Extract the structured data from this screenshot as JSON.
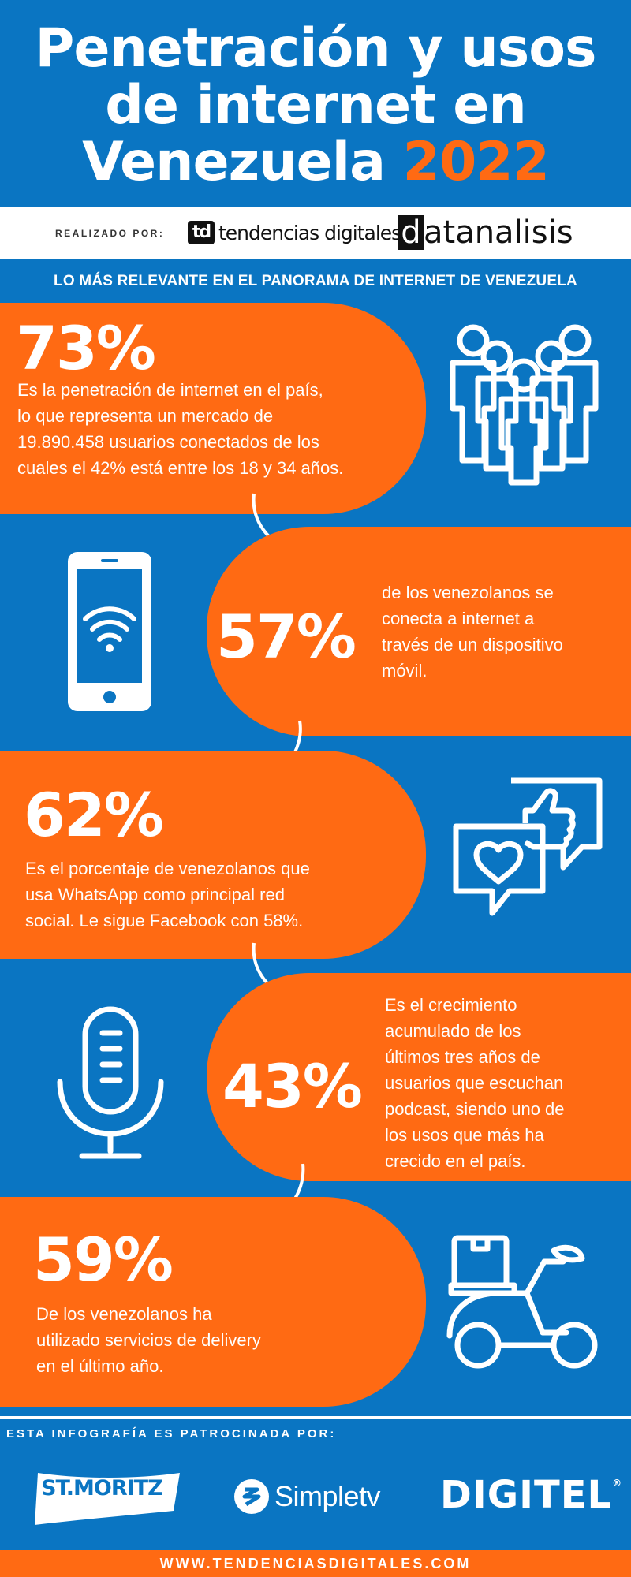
{
  "header": {
    "title_line1": "Penetración y usos",
    "title_line2": "de internet en",
    "title_line3_text": "Venezuela",
    "title_year": "2022"
  },
  "made_by": {
    "label": "REALIZADO POR:",
    "logo1_mark": "td",
    "logo1_text": "tendencias digitales",
    "logo2_mark": "d",
    "logo2_text": "atanalisis"
  },
  "subtitle": "LO MÁS RELEVANTE EN EL PANORAMA DE INTERNET DE VENEZUELA",
  "stats": [
    {
      "value": "73%",
      "text_lines": [
        "Es la penetración de internet en el país,",
        "lo que representa un mercado de",
        "19.890.458 usuarios conectados de los",
        "cuales el 42% está entre los 18 y 34 años."
      ],
      "icon": "people-group-icon"
    },
    {
      "value": "57%",
      "text_lines": [
        "de los venezolanos se",
        "conecta a internet a",
        "través de un dispositivo",
        "móvil."
      ],
      "icon": "smartphone-wifi-icon"
    },
    {
      "value": "62%",
      "text_lines": [
        "Es el porcentaje de venezolanos que",
        "usa WhatsApp como principal red",
        "social. Le sigue Facebook con 58%."
      ],
      "icon": "social-chat-like-icon"
    },
    {
      "value": "43%",
      "text_lines": [
        "Es el crecimiento",
        "acumulado de los",
        "últimos tres años de",
        "usuarios que escuchan",
        "podcast, siendo uno de",
        "los usos que más ha",
        "crecido en el país."
      ],
      "icon": "microphone-icon"
    },
    {
      "value": "59%",
      "text_lines": [
        "De los venezolanos ha",
        "utilizado servicios de delivery",
        "en el último año."
      ],
      "icon": "delivery-scooter-icon"
    }
  ],
  "sponsors": {
    "label": "ESTA INFOGRAFÍA ES PATROCINADA POR:",
    "stmoritz": "ST.MORITZ",
    "simpletv": "Simpletv",
    "digitel": "DIGITEL"
  },
  "footer": "WWW.TENDENCIASDIGITALES.COM",
  "colors": {
    "blue": "#0a75c2",
    "orange": "#ff6a13",
    "white": "#ffffff"
  }
}
